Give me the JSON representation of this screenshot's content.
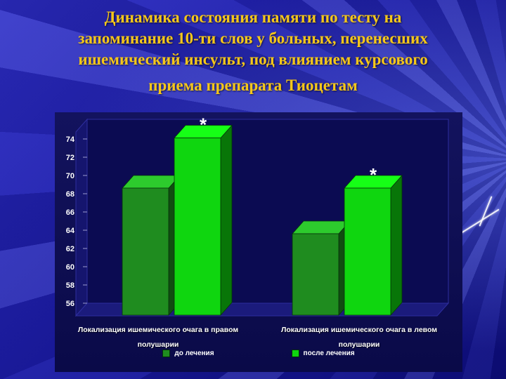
{
  "slide": {
    "title_lines": [
      "Динамика состояния памяти по тесту на",
      "запоминание 10-ти слов у больных, перенесших",
      "ишемический инсульт, под влиянием курсового",
      "приема препарата Тиоцетам"
    ]
  },
  "colors": {
    "background": "#1b1ba4",
    "title": "#f5c71a",
    "chart_panel": "#0d0d56",
    "text": "#ffffff"
  },
  "chart_data": {
    "type": "bar",
    "title": "Динамика состояния памяти по тесту на запоминание 10-ти слов у больных, перенесших ишемический инсульт, под влиянием курсового приема препарата Тиоцетам",
    "categories": [
      "Локализация ишемического очага в правом полушарии",
      "Локализация ишемического очага в левом полушарии"
    ],
    "series": [
      {
        "name": "до лечения",
        "color": "#1f8c1f",
        "values": [
          70,
          65
        ]
      },
      {
        "name": "после лечения",
        "color": "#0fd60f",
        "values": [
          75.5,
          70
        ],
        "annotations": [
          "*",
          "*"
        ]
      }
    ],
    "ylim": [
      56,
      76
    ],
    "yticks": [
      56,
      58,
      60,
      62,
      64,
      66,
      68,
      70,
      72,
      74
    ],
    "ylabel": "",
    "xlabel": "",
    "grid": false,
    "legend_position": "bottom",
    "style": "3d-bars"
  }
}
